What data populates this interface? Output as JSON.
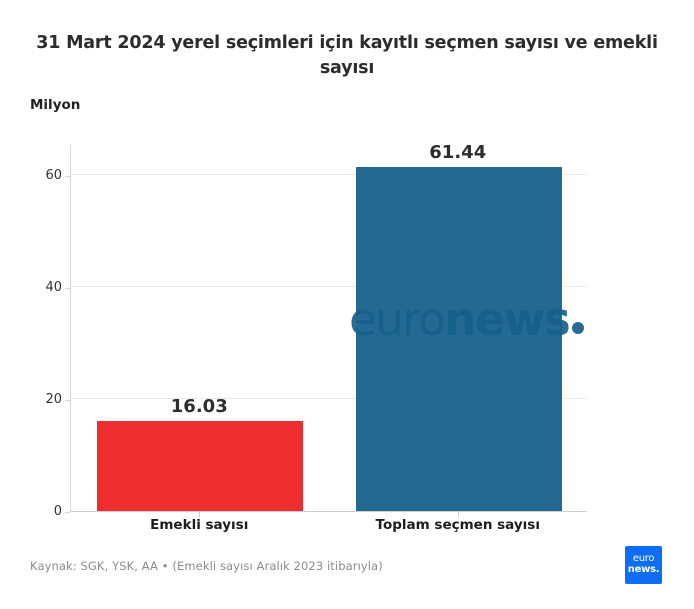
{
  "header": {
    "title": "31 Mart 2024 yerel seçimleri için kayıtlı seçmen sayısı ve emekli sayısı",
    "unit_label": "Milyon"
  },
  "footer": {
    "source": "Kaynak: SGK, YSK, AA • (Emekli sayısı Aralık 2023 itibarıyla)"
  },
  "watermark": {
    "text_light": "euro",
    "text_bold": "news",
    "color": "#15608c"
  },
  "logo": {
    "line1": "euro",
    "line2": "news.",
    "background": "#0d6ef4"
  },
  "chart_data": {
    "type": "bar",
    "title": "31 Mart 2024 yerel seçimleri için kayıtlı seçmen sayısı ve emekli sayısı",
    "ylabel": "Milyon",
    "xlabel": "",
    "categories": [
      "Emekli sayısı",
      "Toplam seçmen sayısı"
    ],
    "values": [
      16.03,
      61.44
    ],
    "value_labels": [
      "16.03",
      "61.44"
    ],
    "bar_colors": [
      "#ee2d30",
      "#246992"
    ],
    "yticks": [
      0,
      20,
      40,
      60
    ],
    "ylim": [
      0,
      65.5
    ],
    "grid": true,
    "legend": false
  }
}
